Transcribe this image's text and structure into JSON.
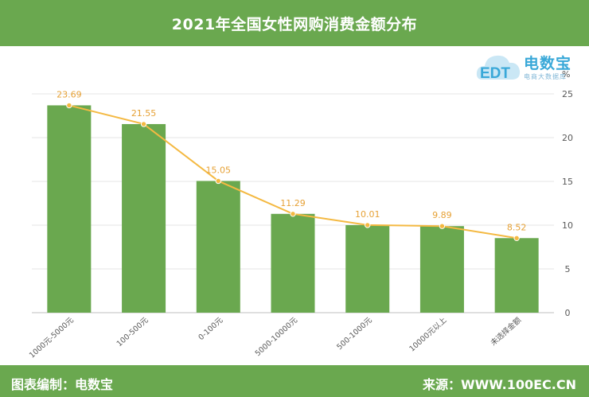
{
  "header": {
    "title": "2021年全国女性网购消费金额分布"
  },
  "logo": {
    "name": "电数宝",
    "tagline": "电商大数据库",
    "mark": "EDT"
  },
  "footer": {
    "left": "图表编制：电数宝",
    "right": "来源：WWW.100EC.CN"
  },
  "colors": {
    "bar": "#6aa84f",
    "line": "#f4b942",
    "label": "#e6a135",
    "bg_bar": "#6aa84f"
  },
  "chart_data": {
    "type": "bar",
    "categories": [
      "1000元-5000元",
      "100-500元",
      "0-100元",
      "5000-10000元",
      "500-1000元",
      "10000元以上",
      "未选择金额"
    ],
    "values": [
      23.69,
      21.55,
      15.05,
      11.29,
      10.01,
      9.89,
      8.52
    ],
    "data_labels": [
      "23.69",
      "21.55",
      "15.05",
      "11.29",
      "10.01",
      "9.89",
      "8.52"
    ],
    "overlay": "line",
    "y_axis_side": "right",
    "ylabel": "%",
    "ylim": [
      0,
      25
    ],
    "yticks": [
      "0",
      "5",
      "10",
      "15",
      "20",
      "25"
    ],
    "grid": true
  }
}
